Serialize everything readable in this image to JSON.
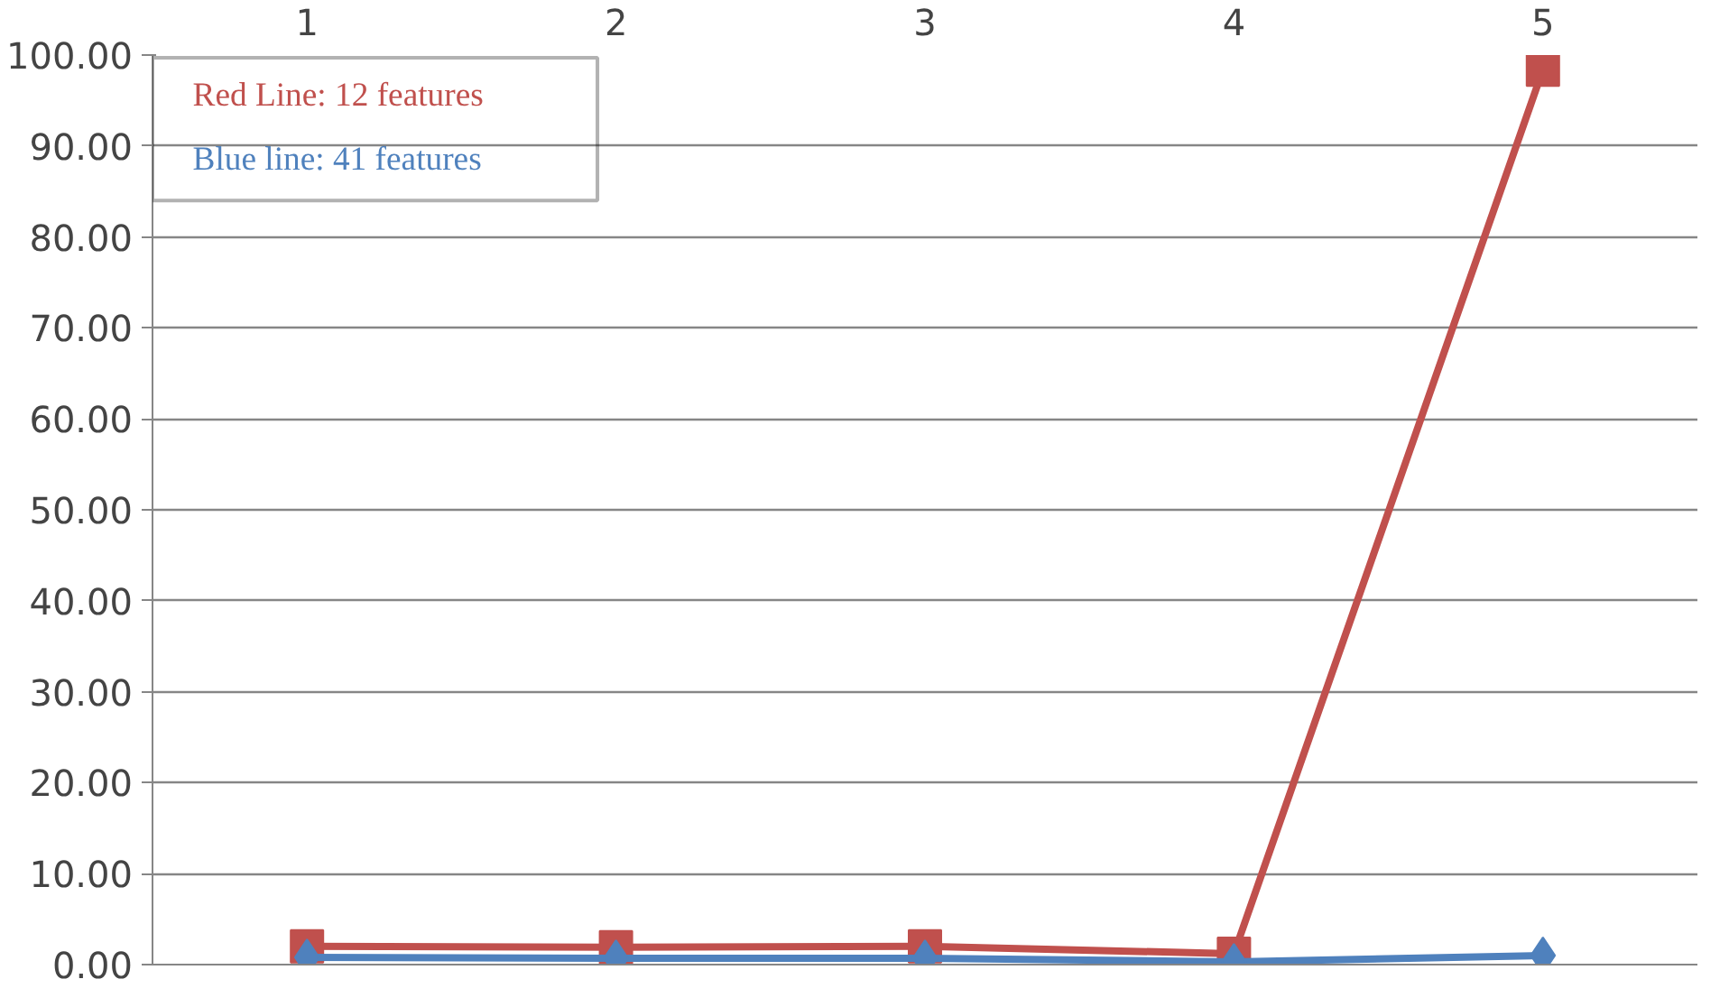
{
  "chart_data": {
    "type": "line",
    "categories": [
      "1",
      "2",
      "3",
      "4",
      "5"
    ],
    "series": [
      {
        "name": "Red Line: 12 features",
        "color": "#c0504d",
        "marker": "square",
        "values": [
          2.0,
          1.9,
          2.0,
          1.2,
          98.4
        ]
      },
      {
        "name": "Blue line: 41 features",
        "color": "#4f81bd",
        "marker": "diamond",
        "values": [
          0.8,
          0.7,
          0.7,
          0.3,
          1.0
        ]
      }
    ],
    "ylim": [
      0,
      100
    ],
    "yticks": [
      {
        "value": 0,
        "label": "0.00"
      },
      {
        "value": 10,
        "label": "10.00"
      },
      {
        "value": 20,
        "label": "20.00"
      },
      {
        "value": 30,
        "label": "30.00"
      },
      {
        "value": 40,
        "label": "40.00"
      },
      {
        "value": 50,
        "label": "50.00"
      },
      {
        "value": 60,
        "label": "60.00"
      },
      {
        "value": 70,
        "label": "70.00"
      },
      {
        "value": 80,
        "label": "80.00"
      },
      {
        "value": 90,
        "label": "90.00"
      },
      {
        "value": 100,
        "label": "100.00"
      }
    ],
    "grid": "y",
    "legend": "top left"
  }
}
